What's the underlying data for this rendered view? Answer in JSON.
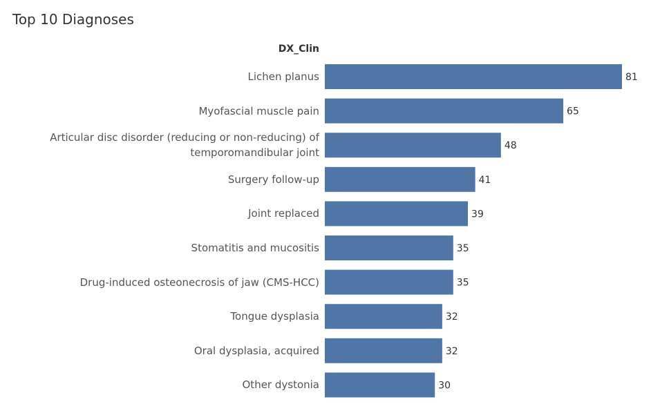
{
  "chart_data": {
    "type": "bar",
    "orientation": "horizontal",
    "title": "Top 10 Diagnoses",
    "y_label": "DX_Clin",
    "categories": [
      "Lichen planus",
      "Myofascial muscle pain",
      "Articular disc disorder (reducing or non-reducing) of temporomandibular joint",
      "Surgery follow-up",
      "Joint replaced",
      "Stomatitis and mucositis",
      "Drug-induced osteonecrosis of jaw (CMS-HCC)",
      "Tongue dysplasia",
      "Oral dysplasia, acquired",
      "Other dystonia"
    ],
    "values": [
      81,
      65,
      48,
      41,
      39,
      35,
      35,
      32,
      32,
      30
    ],
    "color": "#4f76a6"
  }
}
